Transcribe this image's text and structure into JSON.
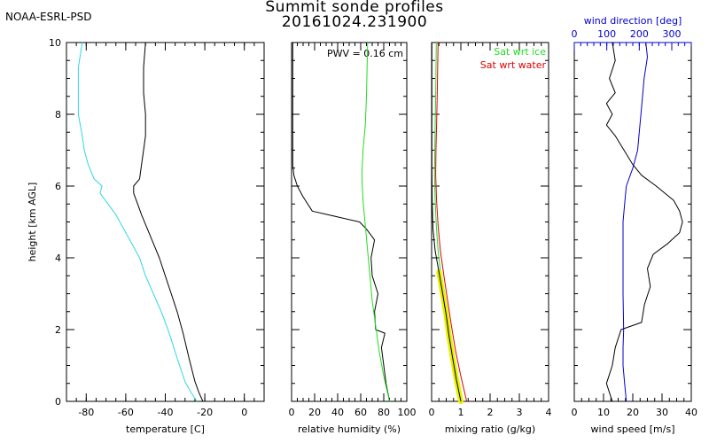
{
  "header": {
    "organization": "NOAA-ESRL-PSD",
    "title": "Summit sonde profiles",
    "subtitle": "20161024.231900"
  },
  "colors": {
    "axis": "#000000",
    "cyan": "#2fd6e6",
    "green": "#22dd22",
    "red": "#dd0000",
    "blue": "#0000cc",
    "yellow": "#e6f000"
  },
  "chart_data": [
    {
      "type": "line",
      "ylabel": "height [km AGL]",
      "xlabel": "temperature [C]",
      "xlim": [
        -90,
        10
      ],
      "ylim": [
        0,
        10
      ],
      "xticks": [
        -80,
        -60,
        -40,
        -20,
        0
      ],
      "yticks": [
        0,
        2,
        4,
        6,
        8,
        10
      ],
      "series": [
        {
          "color": "#000000",
          "x": [
            -21,
            -23,
            -25,
            -28,
            -31,
            -34,
            -37,
            -40,
            -43,
            -46,
            -49,
            -52,
            -54,
            -56,
            -56,
            -53,
            -52,
            -51,
            -50,
            -50,
            -51,
            -51,
            -50
          ],
          "y": [
            0,
            0.25,
            0.55,
            1.2,
            1.9,
            2.5,
            3.0,
            3.5,
            4.0,
            4.4,
            4.8,
            5.2,
            5.5,
            5.8,
            6.0,
            6.2,
            6.6,
            7.0,
            7.4,
            8.0,
            8.6,
            9.3,
            10
          ]
        },
        {
          "color": "#2fd6e6",
          "x": [
            -24,
            -27,
            -30,
            -34,
            -38,
            -42,
            -46,
            -50,
            -53,
            -57,
            -61,
            -65,
            -69,
            -73,
            -72,
            -76,
            -79,
            -81,
            -82,
            -84,
            -84,
            -84,
            -82
          ],
          "y": [
            0,
            0.25,
            0.55,
            1.2,
            1.9,
            2.5,
            3.0,
            3.5,
            4.0,
            4.4,
            4.8,
            5.2,
            5.5,
            5.8,
            6.0,
            6.2,
            6.6,
            7.0,
            7.4,
            8.0,
            8.6,
            9.3,
            10
          ]
        }
      ]
    },
    {
      "type": "line",
      "xlabel": "relative humidity (%)",
      "xlim": [
        0,
        100
      ],
      "ylim": [
        0,
        10
      ],
      "xticks": [
        0,
        20,
        40,
        60,
        80,
        100
      ],
      "annotation": "PWV = 0.16 cm",
      "series": [
        {
          "color": "#000000",
          "x": [
            85,
            82,
            80,
            78,
            81,
            73,
            72,
            75,
            70,
            69,
            72,
            65,
            59,
            18,
            10,
            5,
            2,
            1,
            1,
            1,
            1
          ],
          "y": [
            0,
            0.5,
            1.0,
            1.5,
            1.9,
            2.0,
            2.5,
            3.0,
            3.5,
            4.0,
            4.5,
            4.8,
            5.0,
            5.3,
            5.7,
            6.0,
            6.3,
            6.6,
            7.5,
            8.5,
            10
          ]
        },
        {
          "color": "#22dd22",
          "x": [
            85,
            80,
            76,
            73,
            70,
            68,
            66,
            64,
            62,
            61,
            62,
            64,
            65,
            66
          ],
          "y": [
            0,
            0.7,
            1.4,
            2.1,
            2.8,
            3.5,
            4.2,
            4.9,
            5.6,
            6.3,
            7.0,
            7.7,
            8.5,
            10
          ]
        }
      ]
    },
    {
      "type": "line",
      "xlabel": "mixing ratio (g/kg)",
      "xlim": [
        0,
        4
      ],
      "ylim": [
        0,
        10
      ],
      "xticks": [
        0,
        1,
        2,
        3,
        4
      ],
      "legend": [
        "Sat wrt ice",
        "Sat wrt water"
      ],
      "series": [
        {
          "name": "Sat wrt water",
          "color": "#dd0000",
          "x": [
            1.2,
            1.0,
            0.82,
            0.68,
            0.55,
            0.42,
            0.3,
            0.22,
            0.17,
            0.14,
            0.15,
            0.17,
            0.19,
            0.22
          ],
          "y": [
            0,
            0.7,
            1.4,
            2.1,
            2.8,
            3.5,
            4.2,
            4.9,
            5.6,
            6.3,
            7.0,
            7.7,
            8.5,
            10
          ]
        },
        {
          "name": "Sat wrt ice",
          "color": "#22dd22",
          "x": [
            1.05,
            0.85,
            0.68,
            0.55,
            0.43,
            0.32,
            0.22,
            0.16,
            0.12,
            0.1,
            0.11,
            0.12,
            0.14,
            0.16
          ],
          "y": [
            0,
            0.7,
            1.4,
            2.1,
            2.8,
            3.5,
            4.2,
            4.9,
            5.6,
            6.3,
            7.0,
            7.7,
            8.5,
            10
          ]
        },
        {
          "color": "#000000",
          "x": [
            1.0,
            0.85,
            0.72,
            0.6,
            0.5,
            0.38,
            0.25,
            0.12,
            0.05,
            0.02,
            0.01,
            0.01
          ],
          "y": [
            0,
            0.6,
            1.2,
            1.8,
            2.4,
            3.0,
            3.6,
            4.2,
            4.8,
            5.5,
            6.5,
            10
          ]
        }
      ]
    },
    {
      "type": "line",
      "xlabel": "wind speed [m/s]",
      "x2label": "wind direction [deg]",
      "xlim": [
        0,
        40
      ],
      "x2lim": [
        0,
        360
      ],
      "ylim": [
        0,
        10
      ],
      "xticks": [
        0,
        10,
        20,
        30,
        40
      ],
      "x2ticks": [
        0,
        100,
        200,
        300
      ],
      "series": [
        {
          "color": "#000000",
          "x": [
            13,
            11,
            13,
            14,
            16,
            23,
            24,
            26,
            25,
            27,
            32,
            36,
            37,
            36,
            34,
            28,
            23,
            20,
            17,
            14,
            11,
            13,
            11,
            14,
            12,
            14,
            13
          ],
          "y": [
            0,
            0.5,
            1.0,
            1.5,
            2.0,
            2.2,
            2.7,
            3.2,
            3.7,
            4.1,
            4.4,
            4.7,
            5.0,
            5.3,
            5.6,
            6.0,
            6.3,
            6.6,
            7.0,
            7.4,
            7.7,
            8.0,
            8.3,
            8.6,
            9.0,
            9.5,
            10
          ]
        },
        {
          "color": "#0000cc",
          "x": [
            160,
            155,
            150,
            150,
            152,
            150,
            150,
            150,
            155,
            160,
            180,
            195,
            200,
            205,
            210,
            215,
            220,
            225,
            220
          ],
          "y": [
            0,
            0.5,
            1.0,
            1.5,
            2.0,
            3.0,
            4.0,
            5.0,
            5.5,
            6.0,
            6.5,
            7.0,
            7.5,
            8.0,
            8.5,
            9.0,
            9.3,
            9.6,
            10
          ]
        }
      ]
    }
  ]
}
